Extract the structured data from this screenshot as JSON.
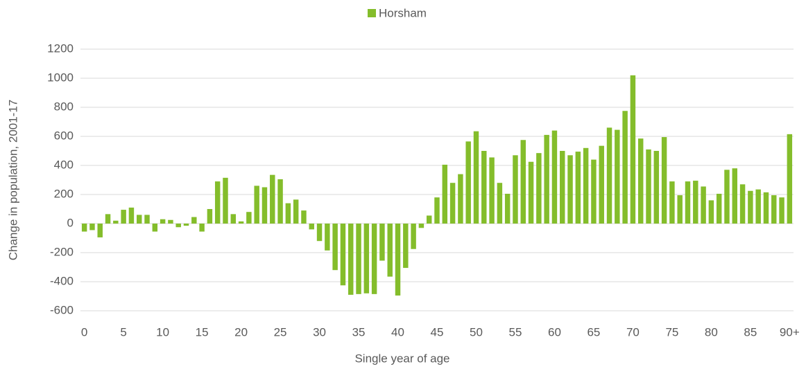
{
  "chart_data": {
    "type": "bar",
    "x_label": "Single year of age",
    "y_label": "Change in population, 2001-17",
    "categories": [
      "0",
      null,
      null,
      null,
      null,
      "5",
      null,
      null,
      null,
      null,
      "10",
      null,
      null,
      null,
      null,
      "15",
      null,
      null,
      null,
      null,
      "20",
      null,
      null,
      null,
      null,
      "25",
      null,
      null,
      null,
      null,
      "30",
      null,
      null,
      null,
      null,
      "35",
      null,
      null,
      null,
      null,
      "40",
      null,
      null,
      null,
      null,
      "45",
      null,
      null,
      null,
      null,
      "50",
      null,
      null,
      null,
      null,
      "55",
      null,
      null,
      null,
      null,
      "60",
      null,
      null,
      null,
      null,
      "65",
      null,
      null,
      null,
      null,
      "70",
      null,
      null,
      null,
      null,
      "75",
      null,
      null,
      null,
      null,
      "80",
      null,
      null,
      null,
      null,
      "85",
      null,
      null,
      null,
      null,
      "90+"
    ],
    "series": [
      {
        "name": "Horsham",
        "color": "#84bd2b",
        "values": [
          -55,
          -45,
          -95,
          65,
          20,
          95,
          110,
          60,
          60,
          -55,
          30,
          25,
          -25,
          -15,
          45,
          -55,
          100,
          290,
          315,
          65,
          15,
          80,
          260,
          250,
          335,
          305,
          140,
          165,
          90,
          -40,
          -120,
          -185,
          -320,
          -425,
          -490,
          -485,
          -480,
          -485,
          -255,
          -365,
          -495,
          -305,
          -175,
          -30,
          55,
          180,
          405,
          280,
          340,
          565,
          635,
          500,
          455,
          280,
          205,
          470,
          575,
          425,
          485,
          610,
          640,
          500,
          470,
          495,
          520,
          440,
          535,
          660,
          645,
          775,
          1020,
          585,
          510,
          500,
          595,
          290,
          195,
          290,
          295,
          255,
          160,
          205,
          370,
          380,
          270,
          225,
          235,
          215,
          195,
          180,
          615
        ]
      }
    ],
    "ylim": [
      -600,
      1200
    ],
    "yticks": [
      -600,
      -400,
      -200,
      0,
      200,
      400,
      600,
      800,
      1000,
      1200
    ],
    "grid": true,
    "legend": "top"
  }
}
